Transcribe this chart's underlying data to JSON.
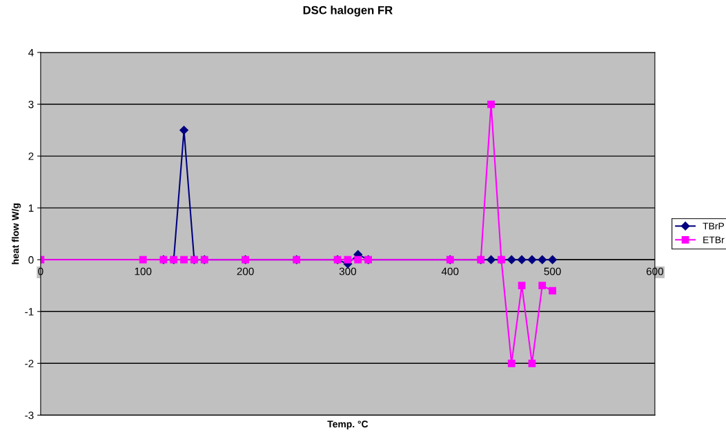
{
  "chart_data": {
    "type": "line",
    "title": "DSC halogen FR",
    "xlabel": "Temp. °C",
    "ylabel": "heat flow W/g",
    "xlim": [
      0,
      600
    ],
    "xticks": [
      0,
      100,
      200,
      300,
      400,
      500,
      600
    ],
    "ylim": [
      -3,
      4
    ],
    "yticks": [
      -3,
      -2,
      -1,
      0,
      1,
      2,
      3,
      4
    ],
    "grid": "y",
    "legend": "right",
    "x": [
      0,
      100,
      120,
      130,
      140,
      150,
      160,
      200,
      250,
      290,
      300,
      310,
      320,
      400,
      430,
      440,
      450,
      460,
      470,
      480,
      490,
      500
    ],
    "series": [
      {
        "name": "TBrP",
        "color": "#000080",
        "marker": "diamond",
        "values": [
          null,
          null,
          0,
          0,
          2.5,
          0,
          0,
          0,
          0,
          0,
          -0.08,
          0.1,
          0,
          0,
          0,
          0,
          0,
          0,
          0,
          0,
          0,
          0
        ]
      },
      {
        "name": "ETBr",
        "color": "#ff00ff",
        "marker": "square",
        "values": [
          0,
          0,
          0,
          0,
          0,
          0,
          0,
          0,
          0,
          0,
          0,
          0,
          0,
          0,
          0,
          3,
          0,
          -2,
          -0.5,
          -2,
          -0.5,
          -0.6
        ]
      }
    ]
  }
}
